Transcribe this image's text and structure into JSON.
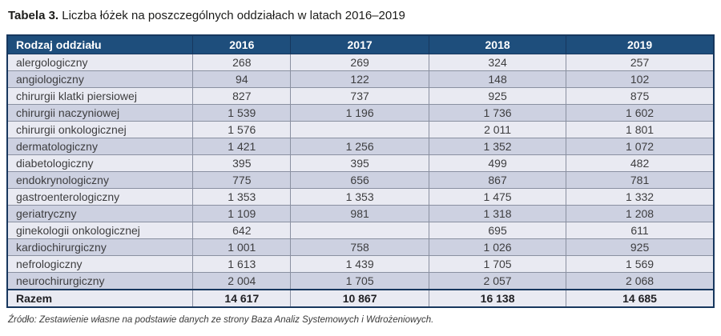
{
  "title": {
    "label": "Tabela 3.",
    "text": " Liczba łóżek na poszczególnych oddziałach w latach 2016–2019"
  },
  "table": {
    "columns": [
      "Rodzaj oddziału",
      "2016",
      "2017",
      "2018",
      "2019"
    ],
    "rows": [
      {
        "name": "alergologiczny",
        "values": [
          "268",
          "269",
          "324",
          "257"
        ]
      },
      {
        "name": "angiologiczny",
        "values": [
          "94",
          "122",
          "148",
          "102"
        ]
      },
      {
        "name": "chirurgii klatki piersiowej",
        "values": [
          "827",
          "737",
          "925",
          "875"
        ]
      },
      {
        "name": "chirurgii naczyniowej",
        "values": [
          "1 539",
          "1 196",
          "1 736",
          "1 602"
        ]
      },
      {
        "name": "chirurgii onkologicznej",
        "values": [
          "1 576",
          "",
          "2 011",
          "1 801"
        ]
      },
      {
        "name": "dermatologiczny",
        "values": [
          "1 421",
          "1 256",
          "1 352",
          "1 072"
        ]
      },
      {
        "name": "diabetologiczny",
        "values": [
          "395",
          "395",
          "499",
          "482"
        ]
      },
      {
        "name": "endokrynologiczny",
        "values": [
          "775",
          "656",
          "867",
          "781"
        ]
      },
      {
        "name": "gastroenterologiczny",
        "values": [
          "1 353",
          "1 353",
          "1 475",
          "1 332"
        ]
      },
      {
        "name": "geriatryczny",
        "values": [
          "1 109",
          "981",
          "1 318",
          "1 208"
        ]
      },
      {
        "name": "ginekologii onkologicznej",
        "values": [
          "642",
          "",
          "695",
          "611"
        ]
      },
      {
        "name": "kardiochirurgiczny",
        "values": [
          "1 001",
          "758",
          "1 026",
          "925"
        ]
      },
      {
        "name": "nefrologiczny",
        "values": [
          "1 613",
          "1 439",
          "1 705",
          "1 569"
        ]
      },
      {
        "name": "neurochirurgiczny",
        "values": [
          "2 004",
          "1 705",
          "2 057",
          "2 068"
        ]
      }
    ],
    "total": {
      "name": "Razem",
      "values": [
        "14 617",
        "10 867",
        "16 138",
        "14 685"
      ]
    }
  },
  "footer": {
    "source": "Źródło: Zestawienie własne na podstawie danych ze strony Baza Analiz Systemowych i Wdrożeniowych."
  },
  "colors": {
    "header_bg": "#1e4e7c",
    "outer_border": "#17375e",
    "grid_line": "#8a90a1",
    "row_light": "#e9eaf2",
    "row_dark": "#cdd1e1",
    "text": "#3d3d3f"
  }
}
